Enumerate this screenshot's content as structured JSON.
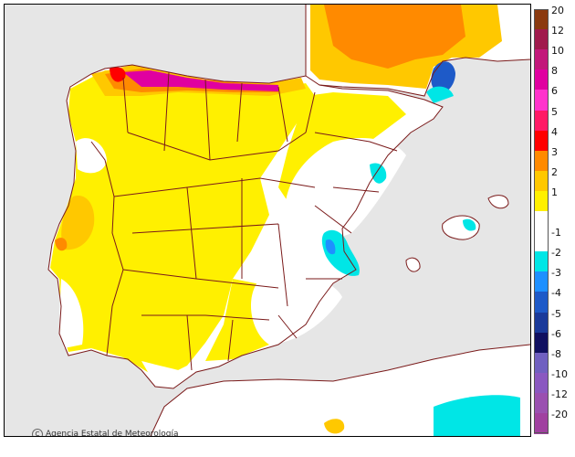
{
  "credit": {
    "symbol": "C",
    "text": "Agencia Estatal de Meteorología"
  },
  "legend": {
    "entries": [
      {
        "label": "20",
        "color": "#8B3A0F"
      },
      {
        "label": "12",
        "color": "#A01A4C"
      },
      {
        "label": "10",
        "color": "#C2187A"
      },
      {
        "label": "8",
        "color": "#E000A0"
      },
      {
        "label": "6",
        "color": "#FF33CC"
      },
      {
        "label": "5",
        "color": "#FF1A66"
      },
      {
        "label": "4",
        "color": "#FF0000"
      },
      {
        "label": "3",
        "color": "#FF8A00"
      },
      {
        "label": "2",
        "color": "#FFC800"
      },
      {
        "label": "1",
        "color": "#FFF000"
      },
      {
        "label": "",
        "color": "#FFFFFF"
      },
      {
        "label": "-1",
        "color": "#FFFFFF"
      },
      {
        "label": "-2",
        "color": "#00E6E6"
      },
      {
        "label": "-3",
        "color": "#1E90FF"
      },
      {
        "label": "-4",
        "color": "#1E5AC8"
      },
      {
        "label": "-5",
        "color": "#1A3A9A"
      },
      {
        "label": "-6",
        "color": "#101060"
      },
      {
        "label": "-8",
        "color": "#7060C0"
      },
      {
        "label": "-10",
        "color": "#8A58C0"
      },
      {
        "label": "-12",
        "color": "#9A50B0"
      },
      {
        "label": "-20",
        "color": "#A040A0"
      }
    ]
  },
  "colors": {
    "border": "#7A1A1A",
    "sea": "#E6E6E6",
    "land": "#FFFFFF"
  }
}
